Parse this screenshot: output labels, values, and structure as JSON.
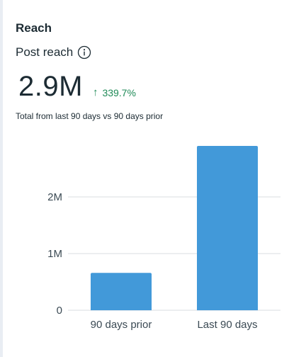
{
  "section": {
    "title": "Reach"
  },
  "metric": {
    "title": "Post reach",
    "info_icon": "info-circle-icon",
    "value": "2.9M",
    "change_icon": "arrow-up-icon",
    "change": "339.7%",
    "comparison": "Total from last 90 days vs 90 days prior"
  },
  "colors": {
    "bar": "#4299d9",
    "positive": "#1f8a57",
    "grid": "#dadde1"
  },
  "chart_data": {
    "type": "bar",
    "categories": [
      "90 days prior",
      "Last 90 days"
    ],
    "values": [
      660000,
      2900000
    ],
    "ylim": [
      0,
      3000000
    ],
    "yticks": [
      0,
      1000000,
      2000000
    ],
    "ytick_labels": [
      "0",
      "1M",
      "2M"
    ],
    "grid": true,
    "legend": "none"
  }
}
